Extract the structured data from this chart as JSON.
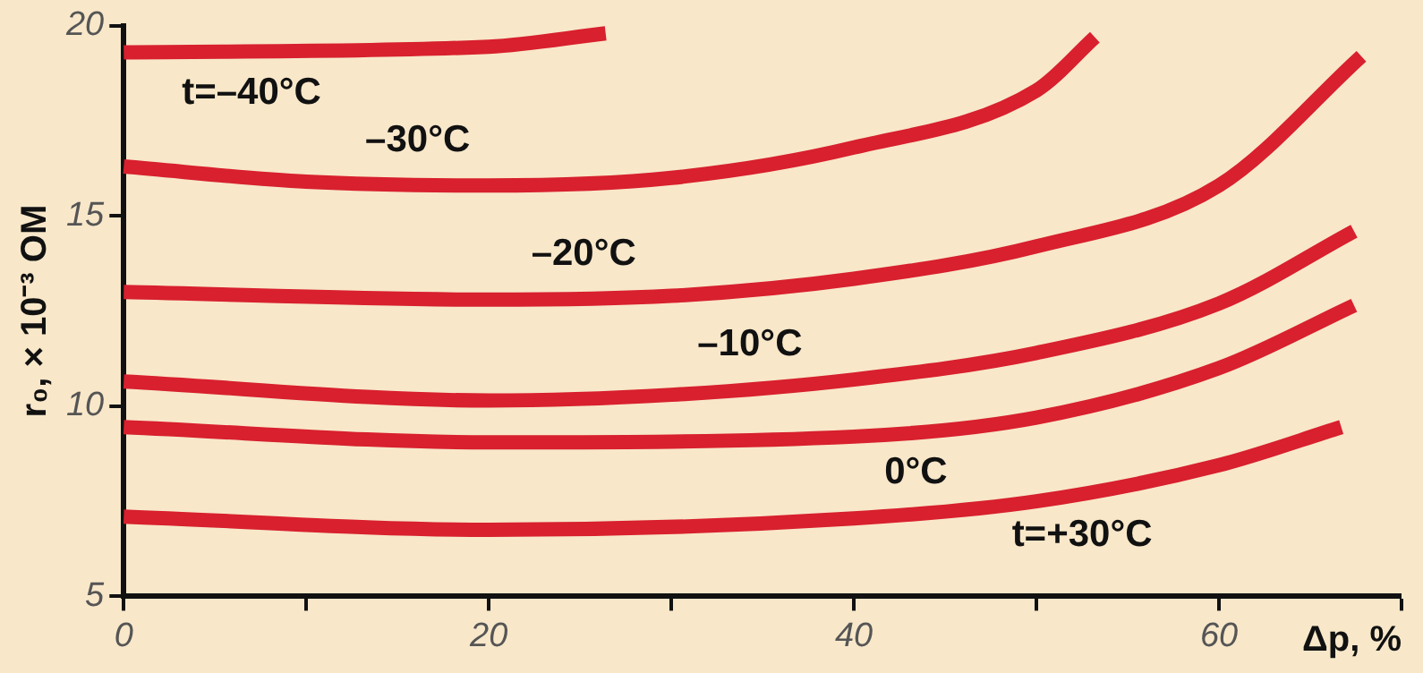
{
  "chart_data": {
    "type": "line",
    "xlabel": "Δp, %",
    "ylabel": "r₀, × 10⁻³ ОМ",
    "xlim": [
      0,
      70
    ],
    "xticks": [
      0,
      {
        "value": 10,
        "label": null
      },
      20,
      {
        "value": 30,
        "label": null
      },
      40,
      {
        "value": 50,
        "label": null
      },
      60,
      {
        "value": 70,
        "label": null
      }
    ],
    "ylim": [
      5,
      20
    ],
    "yticks": [
      5,
      10,
      15,
      20
    ],
    "grid": false,
    "legend": false,
    "marker": "none",
    "line_style": "solid",
    "series": [
      {
        "name": "t=–40°C",
        "color": "#d8202e",
        "x": [
          0,
          20,
          26.4
        ],
        "values": [
          19.3,
          19.45,
          19.8
        ]
      },
      {
        "name": "–30°C",
        "color": "#d8202e",
        "x": [
          0,
          10,
          20,
          30,
          40,
          50,
          53.2
        ],
        "values": [
          16.3,
          15.9,
          15.8,
          16.0,
          16.8,
          18.3,
          19.7
        ]
      },
      {
        "name": "–20°C",
        "color": "#d8202e",
        "x": [
          0,
          20,
          30,
          40,
          50,
          60,
          67.8
        ],
        "values": [
          13.0,
          12.8,
          12.9,
          13.35,
          14.2,
          15.8,
          19.2
        ]
      },
      {
        "name": "–10°C",
        "color": "#d8202e",
        "x": [
          0,
          20,
          30,
          40,
          50,
          60,
          67.4
        ],
        "values": [
          10.65,
          10.15,
          10.3,
          10.7,
          11.4,
          12.7,
          14.6
        ]
      },
      {
        "name": "0°C",
        "color": "#d8202e",
        "x": [
          0,
          20,
          40,
          50,
          60,
          67.4
        ],
        "values": [
          9.45,
          9.05,
          9.2,
          9.7,
          11.0,
          12.65
        ]
      },
      {
        "name": "t=+30°C",
        "color": "#d8202e",
        "x": [
          0,
          20,
          40,
          50,
          60,
          66.7
        ],
        "values": [
          7.1,
          6.75,
          7.05,
          7.5,
          8.45,
          9.45
        ]
      }
    ]
  }
}
